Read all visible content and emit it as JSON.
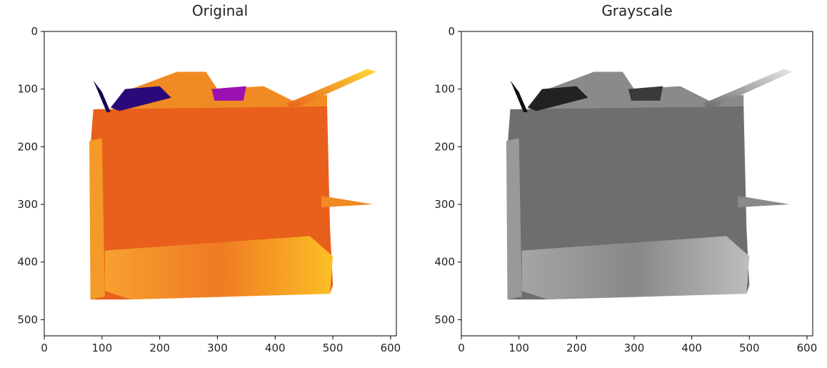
{
  "chart_data": [
    {
      "type": "image",
      "title": "Original",
      "xlim": [
        0,
        610
      ],
      "ylim": [
        528,
        0
      ],
      "xticks": [
        0,
        100,
        200,
        300,
        400,
        500,
        600
      ],
      "yticks": [
        0,
        100,
        200,
        300,
        400,
        500
      ]
    },
    {
      "type": "image",
      "title": "Grayscale",
      "xlim": [
        0,
        610
      ],
      "ylim": [
        528,
        0
      ],
      "xticks": [
        0,
        100,
        200,
        300,
        400,
        500,
        600
      ],
      "yticks": [
        0,
        100,
        200,
        300,
        400,
        500
      ]
    }
  ]
}
